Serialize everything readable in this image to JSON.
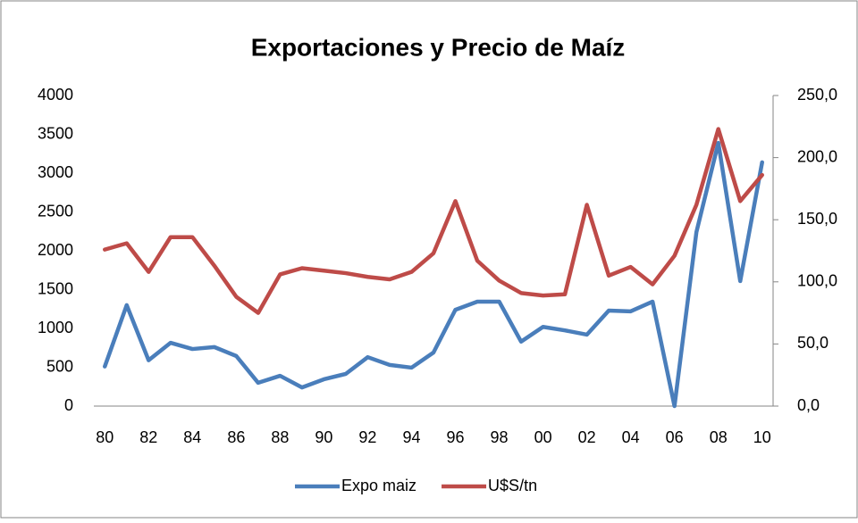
{
  "chart_data": {
    "type": "line",
    "title": "Exportaciones y Precio de Maíz",
    "categories": [
      "80",
      null,
      "82",
      null,
      "84",
      null,
      "86",
      null,
      "88",
      null,
      "90",
      null,
      "92",
      null,
      "94",
      null,
      "96",
      null,
      "98",
      null,
      "00",
      null,
      "02",
      null,
      "04",
      null,
      "06",
      null,
      "08",
      null,
      "10"
    ],
    "series": [
      {
        "name": "Expo maiz",
        "color": "#4a7ebb",
        "values": [
          510,
          1300,
          590,
          815,
          735,
          760,
          645,
          300,
          390,
          240,
          345,
          415,
          630,
          530,
          495,
          690,
          1240,
          1345,
          1345,
          830,
          1020,
          975,
          920,
          1230,
          1220,
          1345,
          0,
          2240,
          3390,
          1610,
          3140
        ]
      },
      {
        "name": "U$S/tn",
        "color": "#be4b48",
        "axis": "y2",
        "values": [
          126,
          131,
          108,
          136,
          136,
          113,
          88,
          75,
          106,
          111,
          109,
          107,
          104,
          102,
          108,
          123,
          165,
          117,
          101,
          91,
          89,
          90,
          162,
          105,
          112,
          98,
          121,
          162,
          223,
          165,
          186
        ]
      }
    ],
    "ylim": [
      0,
      4000
    ],
    "yticks": [
      0,
      500,
      1000,
      1500,
      2000,
      2500,
      3000,
      3500,
      4000
    ],
    "y2lim": [
      0,
      250
    ],
    "y2ticks": [
      {
        "value": 0,
        "label": "0,0"
      },
      {
        "value": 50,
        "label": "50,0"
      },
      {
        "value": 100,
        "label": "100,0"
      },
      {
        "value": 150,
        "label": "150,0"
      },
      {
        "value": 200,
        "label": "200,0"
      },
      {
        "value": 250,
        "label": "250,0"
      }
    ],
    "legend": "bottom"
  }
}
